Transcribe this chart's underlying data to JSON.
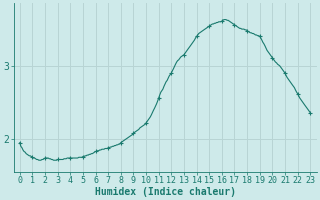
{
  "title": "",
  "xlabel": "Humidex (Indice chaleur)",
  "background_color": "#ceeaea",
  "plot_bg_color": "#ceeaea",
  "line_color": "#1a7a6e",
  "marker_color": "#1a7a6e",
  "grid_color": "#b8d4d4",
  "axis_color": "#1a7a6e",
  "text_color": "#1a7a6e",
  "xlim": [
    -0.5,
    23.5
  ],
  "ylim": [
    1.55,
    3.85
  ],
  "yticks": [
    2,
    3
  ],
  "xticks": [
    0,
    1,
    2,
    3,
    4,
    5,
    6,
    7,
    8,
    9,
    10,
    11,
    12,
    13,
    14,
    15,
    16,
    17,
    18,
    19,
    20,
    21,
    22,
    23
  ],
  "xlabel_fontsize": 7,
  "tick_fontsize": 6,
  "figsize": [
    3.2,
    2.0
  ],
  "dpi": 100,
  "x_fine": [
    0.0,
    0.08,
    0.17,
    0.25,
    0.33,
    0.42,
    0.5,
    0.58,
    0.67,
    0.75,
    0.83,
    0.92,
    1.0,
    1.08,
    1.17,
    1.25,
    1.33,
    1.42,
    1.5,
    1.58,
    1.67,
    1.75,
    1.83,
    1.92,
    2.0,
    2.08,
    2.17,
    2.25,
    2.33,
    2.42,
    2.5,
    2.58,
    2.67,
    2.75,
    2.83,
    2.92,
    3.0,
    3.08,
    3.17,
    3.25,
    3.33,
    3.42,
    3.5,
    3.58,
    3.67,
    3.75,
    3.83,
    3.92,
    4.0,
    4.08,
    4.17,
    4.25,
    4.33,
    4.42,
    4.5,
    4.58,
    4.67,
    4.75,
    4.83,
    4.92,
    5.0,
    5.08,
    5.17,
    5.25,
    5.33,
    5.42,
    5.5,
    5.58,
    5.67,
    5.75,
    5.83,
    5.92,
    6.0,
    6.08,
    6.17,
    6.25,
    6.33,
    6.42,
    6.5,
    6.58,
    6.67,
    6.75,
    6.83,
    6.92,
    7.0,
    7.08,
    7.17,
    7.25,
    7.33,
    7.42,
    7.5,
    7.58,
    7.67,
    7.75,
    7.83,
    7.92,
    8.0,
    8.08,
    8.17,
    8.25,
    8.33,
    8.42,
    8.5,
    8.58,
    8.67,
    8.75,
    8.83,
    8.92,
    9.0,
    9.08,
    9.17,
    9.25,
    9.33,
    9.42,
    9.5,
    9.58,
    9.67,
    9.75,
    9.83,
    9.92,
    10.0,
    10.08,
    10.17,
    10.25,
    10.33,
    10.42,
    10.5,
    10.58,
    10.67,
    10.75,
    10.83,
    10.92,
    11.0,
    11.08,
    11.17,
    11.25,
    11.33,
    11.42,
    11.5,
    11.58,
    11.67,
    11.75,
    11.83,
    11.92,
    12.0,
    12.08,
    12.17,
    12.25,
    12.33,
    12.42,
    12.5,
    12.58,
    12.67,
    12.75,
    12.83,
    12.92,
    13.0,
    13.08,
    13.17,
    13.25,
    13.33,
    13.42,
    13.5,
    13.58,
    13.67,
    13.75,
    13.83,
    13.92,
    14.0,
    14.08,
    14.17,
    14.25,
    14.33,
    14.42,
    14.5,
    14.58,
    14.67,
    14.75,
    14.83,
    14.92,
    15.0,
    15.08,
    15.17,
    15.25,
    15.33,
    15.42,
    15.5,
    15.58,
    15.67,
    15.75,
    15.83,
    15.92,
    16.0,
    16.08,
    16.17,
    16.25,
    16.33,
    16.42,
    16.5,
    16.58,
    16.67,
    16.75,
    16.83,
    16.92,
    17.0,
    17.08,
    17.17,
    17.25,
    17.33,
    17.42,
    17.5,
    17.58,
    17.67,
    17.75,
    17.83,
    17.92,
    18.0,
    18.08,
    18.17,
    18.25,
    18.33,
    18.42,
    18.5,
    18.58,
    18.67,
    18.75,
    18.83,
    18.92,
    19.0,
    19.08,
    19.17,
    19.25,
    19.33,
    19.42,
    19.5,
    19.58,
    19.67,
    19.75,
    19.83,
    19.92,
    20.0,
    20.08,
    20.17,
    20.25,
    20.33,
    20.42,
    20.5,
    20.58,
    20.67,
    20.75,
    20.83,
    20.92,
    21.0,
    21.08,
    21.17,
    21.25,
    21.33,
    21.42,
    21.5,
    21.58,
    21.67,
    21.75,
    21.83,
    21.92,
    22.0,
    22.08,
    22.17,
    22.25,
    22.33,
    22.42,
    22.5,
    22.58,
    22.67,
    22.75,
    22.83,
    22.92,
    23.0
  ],
  "y_fine": [
    1.95,
    1.9,
    1.88,
    1.85,
    1.83,
    1.82,
    1.8,
    1.79,
    1.78,
    1.77,
    1.77,
    1.76,
    1.75,
    1.74,
    1.74,
    1.73,
    1.72,
    1.72,
    1.71,
    1.71,
    1.71,
    1.72,
    1.72,
    1.73,
    1.74,
    1.74,
    1.74,
    1.74,
    1.73,
    1.73,
    1.72,
    1.72,
    1.71,
    1.71,
    1.71,
    1.71,
    1.72,
    1.72,
    1.72,
    1.72,
    1.72,
    1.72,
    1.73,
    1.73,
    1.73,
    1.74,
    1.74,
    1.74,
    1.74,
    1.74,
    1.74,
    1.74,
    1.74,
    1.74,
    1.74,
    1.74,
    1.75,
    1.75,
    1.75,
    1.75,
    1.76,
    1.76,
    1.77,
    1.77,
    1.78,
    1.78,
    1.79,
    1.79,
    1.8,
    1.8,
    1.81,
    1.82,
    1.83,
    1.83,
    1.84,
    1.84,
    1.85,
    1.85,
    1.86,
    1.86,
    1.86,
    1.87,
    1.87,
    1.87,
    1.88,
    1.88,
    1.89,
    1.89,
    1.9,
    1.9,
    1.91,
    1.91,
    1.92,
    1.92,
    1.93,
    1.93,
    1.95,
    1.96,
    1.97,
    1.98,
    1.99,
    2.0,
    2.01,
    2.02,
    2.03,
    2.04,
    2.05,
    2.06,
    2.08,
    2.09,
    2.1,
    2.11,
    2.12,
    2.13,
    2.15,
    2.16,
    2.17,
    2.18,
    2.19,
    2.2,
    2.22,
    2.24,
    2.26,
    2.28,
    2.3,
    2.33,
    2.36,
    2.39,
    2.42,
    2.45,
    2.48,
    2.52,
    2.56,
    2.6,
    2.64,
    2.66,
    2.68,
    2.72,
    2.75,
    2.78,
    2.8,
    2.83,
    2.86,
    2.88,
    2.9,
    2.93,
    2.96,
    2.99,
    3.02,
    3.05,
    3.07,
    3.08,
    3.1,
    3.12,
    3.13,
    3.14,
    3.15,
    3.17,
    3.19,
    3.21,
    3.23,
    3.25,
    3.27,
    3.29,
    3.31,
    3.33,
    3.35,
    3.38,
    3.4,
    3.42,
    3.44,
    3.45,
    3.46,
    3.47,
    3.48,
    3.49,
    3.5,
    3.51,
    3.52,
    3.53,
    3.54,
    3.55,
    3.56,
    3.57,
    3.57,
    3.58,
    3.58,
    3.59,
    3.59,
    3.6,
    3.6,
    3.6,
    3.61,
    3.62,
    3.63,
    3.63,
    3.63,
    3.62,
    3.62,
    3.61,
    3.6,
    3.59,
    3.58,
    3.57,
    3.56,
    3.55,
    3.54,
    3.53,
    3.52,
    3.51,
    3.51,
    3.5,
    3.5,
    3.5,
    3.49,
    3.49,
    3.48,
    3.47,
    3.46,
    3.45,
    3.45,
    3.44,
    3.44,
    3.43,
    3.42,
    3.42,
    3.41,
    3.41,
    3.4,
    3.38,
    3.35,
    3.32,
    3.3,
    3.27,
    3.24,
    3.21,
    3.19,
    3.17,
    3.15,
    3.13,
    3.11,
    3.09,
    3.07,
    3.05,
    3.04,
    3.02,
    3.01,
    3.0,
    2.98,
    2.96,
    2.94,
    2.92,
    2.9,
    2.87,
    2.84,
    2.82,
    2.8,
    2.78,
    2.76,
    2.74,
    2.72,
    2.7,
    2.67,
    2.64,
    2.62,
    2.59,
    2.56,
    2.54,
    2.52,
    2.5,
    2.48,
    2.46,
    2.44,
    2.42,
    2.4,
    2.38,
    2.36
  ],
  "marker_x": [
    0,
    1,
    2,
    3,
    4,
    5,
    6,
    7,
    8,
    9,
    10,
    11,
    12,
    13,
    14,
    15,
    16,
    17,
    18,
    19,
    20,
    21,
    22,
    23
  ],
  "marker_y": [
    1.95,
    1.75,
    1.74,
    1.72,
    1.74,
    1.76,
    1.83,
    1.88,
    1.95,
    2.08,
    2.22,
    2.56,
    2.9,
    3.15,
    3.4,
    3.54,
    3.61,
    3.56,
    3.48,
    3.4,
    3.11,
    2.9,
    2.62,
    2.36
  ]
}
